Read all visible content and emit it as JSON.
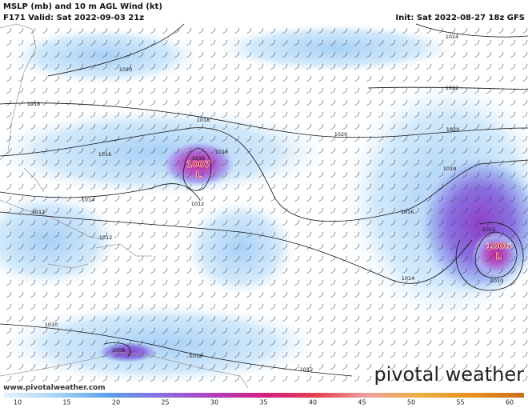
{
  "header": {
    "title": "MSLP (mb) and 10 m AGL Wind (kt)",
    "valid": "F171 Valid: Sat 2022-09-03 21z",
    "init": "Init: Sat 2022-08-27 18z GFS"
  },
  "isobar_labels": [
    "1024",
    "1020",
    "1022",
    "1018",
    "1018",
    "1020",
    "1020",
    "1016",
    "1016",
    "1018",
    "1016",
    "1014",
    "1012",
    "1012",
    "1016",
    "1012",
    "1012",
    "1014",
    "1010",
    "1010",
    "1008",
    "1010",
    "1012"
  ],
  "lows": [
    {
      "pressure": "1007",
      "symbol": "L"
    },
    {
      "pressure": "1006",
      "symbol": "L"
    }
  ],
  "colorbar": {
    "ticks": [
      10,
      15,
      20,
      25,
      30,
      35,
      40,
      45,
      50,
      55,
      60
    ]
  },
  "watermark": "www.pivotalweather.com",
  "logo": "pivotal weather"
}
